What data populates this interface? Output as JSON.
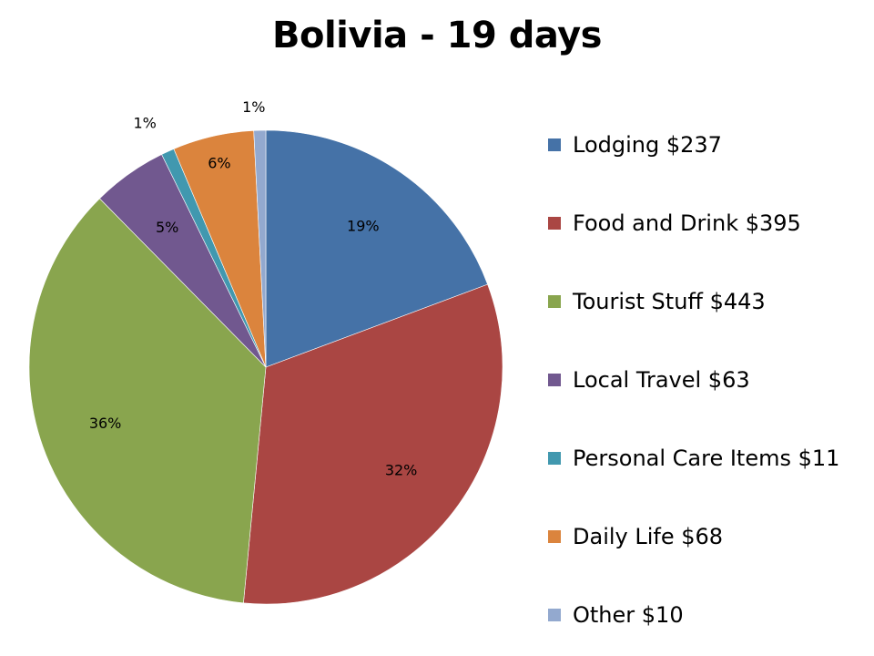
{
  "chart_data": {
    "type": "pie",
    "title": "Bolivia - 19 days",
    "categories": [
      "Lodging $237",
      "Food and Drink $395",
      "Tourist Stuff $443",
      "Local Travel $63",
      "Personal Care Items $11",
      "Daily Life $68",
      "Other $10"
    ],
    "values": [
      237,
      395,
      443,
      63,
      11,
      68,
      10
    ],
    "percent_labels": [
      "19%",
      "32%",
      "36%",
      "5%",
      "1%",
      "6%",
      "1%"
    ],
    "colors": [
      "#4572A7",
      "#AA4643",
      "#89A54E",
      "#71588F",
      "#4198AF",
      "#DB843D",
      "#93A9CF"
    ],
    "legend_position": "right"
  }
}
